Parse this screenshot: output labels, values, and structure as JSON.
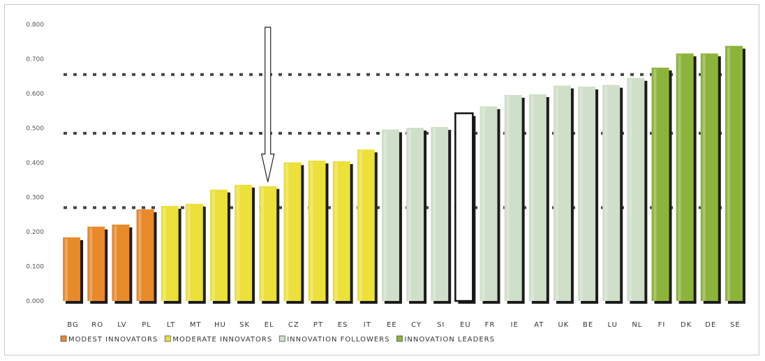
{
  "chart_data": {
    "type": "bar",
    "categories": [
      "BG",
      "RO",
      "LV",
      "PL",
      "LT",
      "MT",
      "HU",
      "SK",
      "EL",
      "CZ",
      "PT",
      "ES",
      "IT",
      "EE",
      "CY",
      "SI",
      "EU",
      "FR",
      "IE",
      "AT",
      "UK",
      "BE",
      "LU",
      "NL",
      "FI",
      "DK",
      "DE",
      "SE"
    ],
    "values": [
      0.184,
      0.215,
      0.221,
      0.265,
      0.275,
      0.281,
      0.322,
      0.336,
      0.332,
      0.401,
      0.406,
      0.404,
      0.438,
      0.496,
      0.501,
      0.503,
      0.543,
      0.563,
      0.596,
      0.598,
      0.623,
      0.62,
      0.625,
      0.645,
      0.675,
      0.716,
      0.716,
      0.738
    ],
    "groups": [
      "modest",
      "modest",
      "modest",
      "modest",
      "moderate",
      "moderate",
      "moderate",
      "moderate",
      "moderate",
      "moderate",
      "moderate",
      "moderate",
      "moderate",
      "follower",
      "follower",
      "follower",
      "eu",
      "follower",
      "follower",
      "follower",
      "follower",
      "follower",
      "follower",
      "follower",
      "leader",
      "leader",
      "leader",
      "leader"
    ],
    "ylim": [
      0,
      0.8
    ],
    "yticks": [
      0.0,
      0.1,
      0.2,
      0.3,
      0.4,
      0.5,
      0.6,
      0.7,
      0.8
    ],
    "ytick_labels": [
      "0.000",
      "0.100",
      "0.200",
      "0.300",
      "0.400",
      "0.500",
      "0.600",
      "0.700",
      "0.800"
    ],
    "thresholds": [
      0.27,
      0.485,
      0.655
    ],
    "highlight": "EL",
    "colors": {
      "modest": "#e8892a",
      "moderate": "#ece03a",
      "follower": "#cfdfca",
      "eu": "#ffffff",
      "leader": "#8db43a",
      "shadow": "#1c1c1c",
      "threshold": "#444444"
    },
    "legend": [
      {
        "key": "modest",
        "label": "MODEST INNOVATORS"
      },
      {
        "key": "moderate",
        "label": "MODERATE INNOVATORS"
      },
      {
        "key": "follower",
        "label": "INNOVATION FOLLOWERS"
      },
      {
        "key": "leader",
        "label": "INNOVATION LEADERS"
      }
    ],
    "grid": false,
    "legend_position": "bottom-left"
  }
}
